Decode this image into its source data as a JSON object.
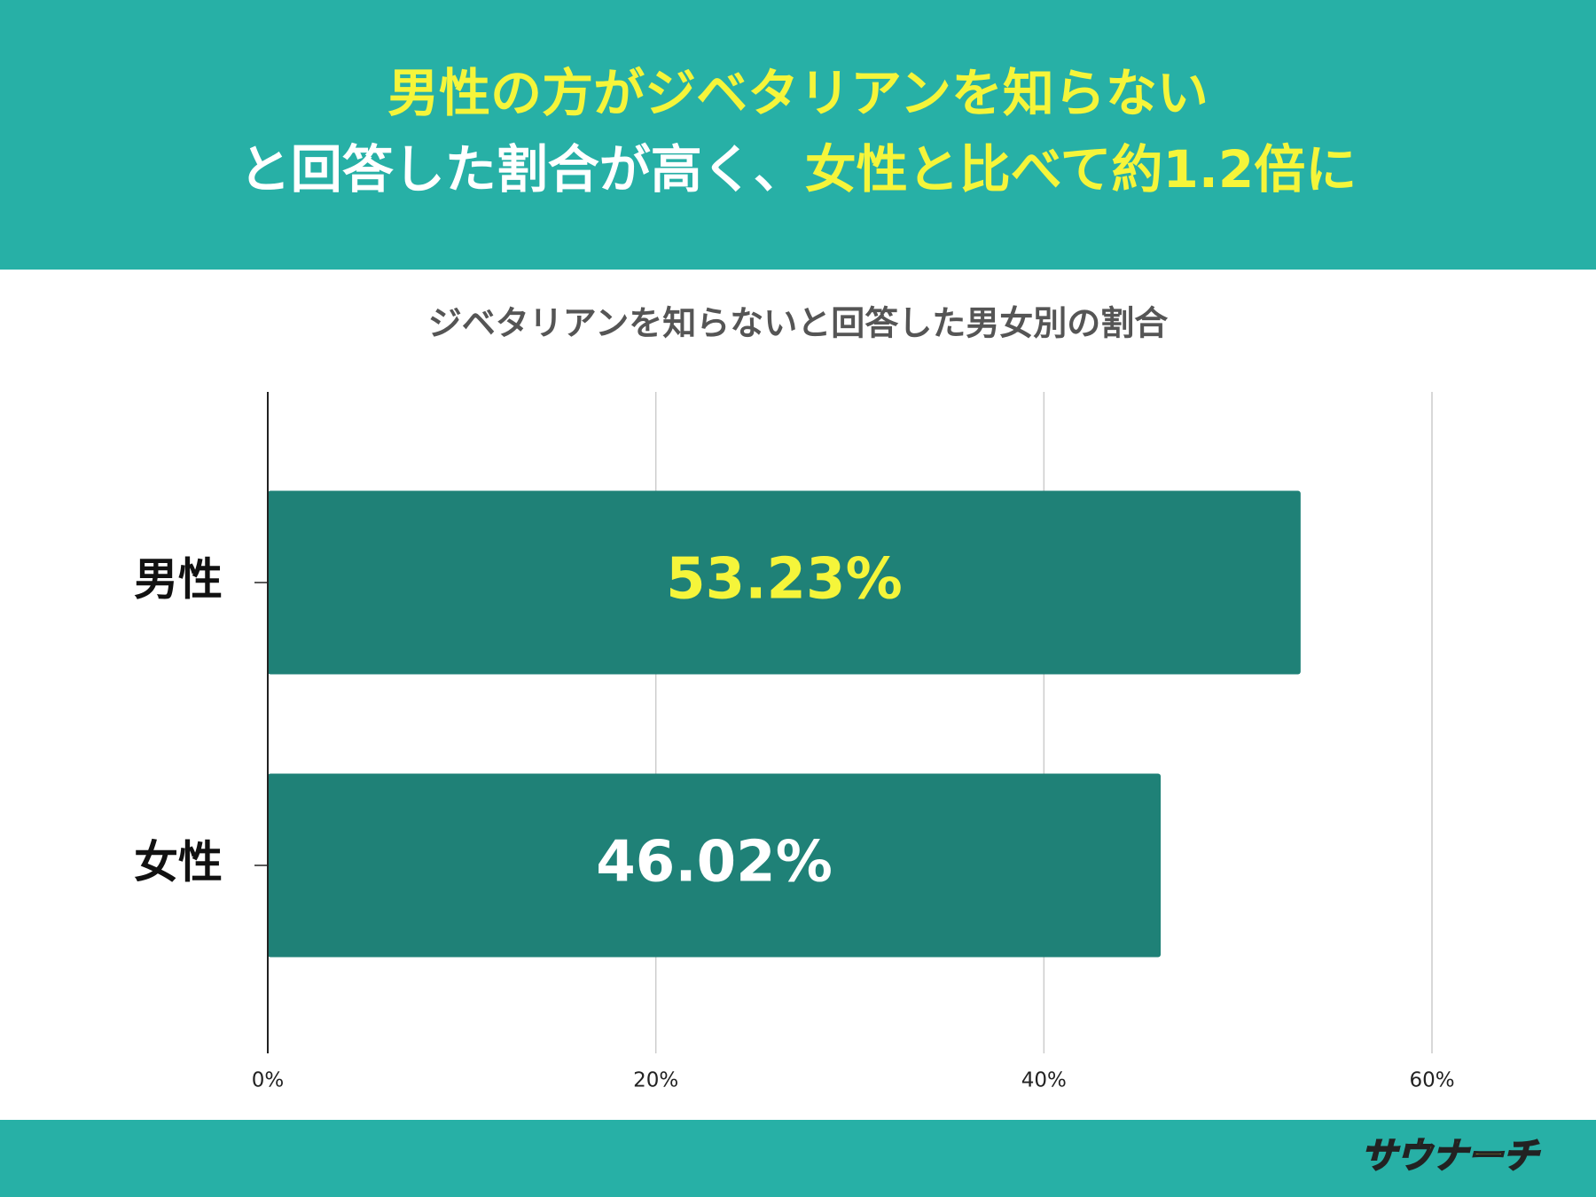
{
  "header": {
    "lines": [
      [
        {
          "text": "男性の方がジベタリアンを知らない",
          "color": "#f5f53a"
        }
      ],
      [
        {
          "text": "と回答した割合が高く、",
          "color": "#ffffff"
        },
        {
          "text": "女性と比べて約1.2倍に",
          "color": "#f5f53a"
        }
      ]
    ]
  },
  "chart_data": {
    "type": "bar",
    "orientation": "horizontal",
    "title": "ジベタリアンを知らないと回答した男女別の割合",
    "categories": [
      "男性",
      "女性"
    ],
    "values": [
      53.23,
      46.02
    ],
    "value_labels": [
      "53.23%",
      "46.02%"
    ],
    "value_label_colors": [
      "#f5f53a",
      "#ffffff"
    ],
    "color": "#1f8177",
    "xlim": [
      0,
      60
    ],
    "xticks": [
      {
        "value": 0,
        "label": "0%"
      },
      {
        "value": 20,
        "label": "20%"
      },
      {
        "value": 40,
        "label": "40%"
      },
      {
        "value": 60,
        "label": "60%"
      }
    ],
    "grid": true
  },
  "footer": {
    "logo": "サウナーチ"
  }
}
